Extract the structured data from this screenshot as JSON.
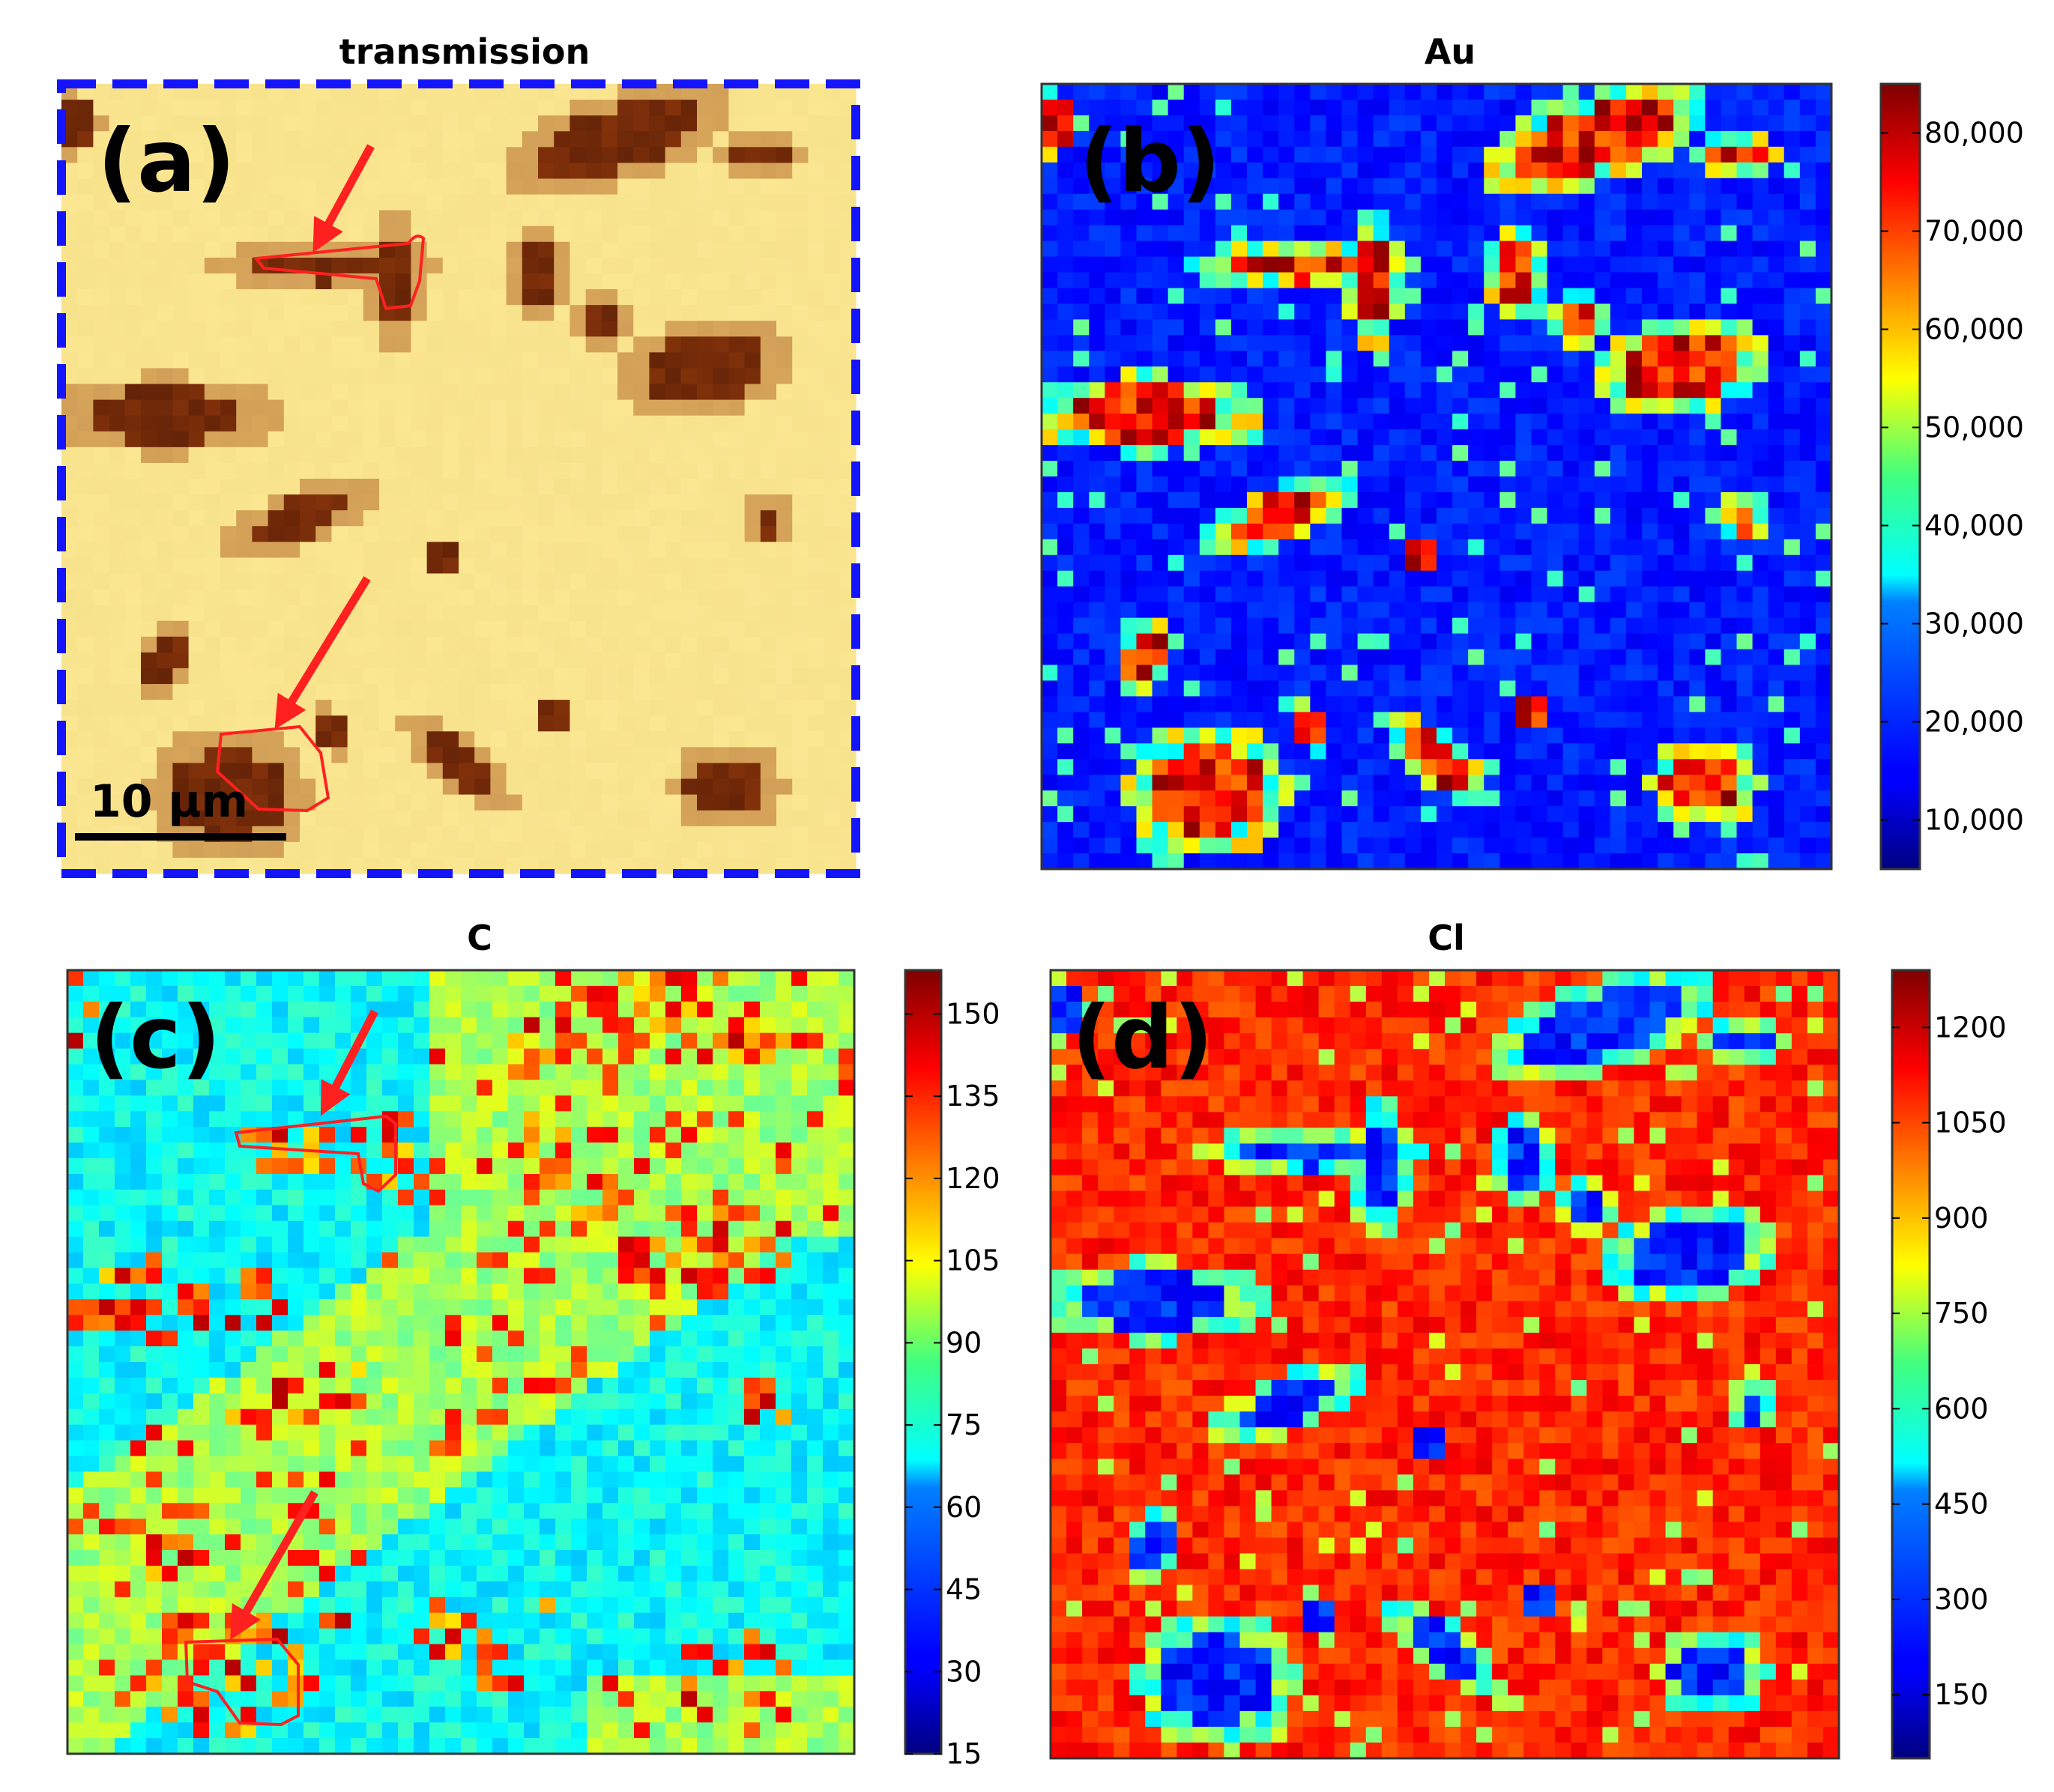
{
  "chart_data": [
    {
      "id": "a",
      "type": "heatmap",
      "title": "transmission",
      "panel_label": "(a)",
      "scale_bar_label": "10 µm",
      "colormap": "hot-inverse (light yellow background, dark brown particles)",
      "colors": {
        "background": "#fbe58f",
        "particle": "#3a0d00",
        "frame": "#1414ff",
        "annotation": "#ff2020"
      },
      "annotations": [
        "arrow",
        "outlined particle",
        "arrow",
        "outlined particle"
      ]
    },
    {
      "id": "b",
      "type": "heatmap",
      "title": "Au",
      "panel_label": "(b)",
      "colormap": "jet",
      "colorbar": {
        "min": 5000,
        "max": 85000,
        "ticks": [
          "10,000",
          "20,000",
          "30,000",
          "40,000",
          "50,000",
          "60,000",
          "70,000",
          "80,000"
        ],
        "tick_values": [
          10000,
          20000,
          30000,
          40000,
          50000,
          60000,
          70000,
          80000
        ]
      }
    },
    {
      "id": "c",
      "type": "heatmap",
      "title": "C",
      "panel_label": "(c)",
      "colormap": "jet",
      "colorbar": {
        "min": 15,
        "max": 158,
        "ticks": [
          "15",
          "30",
          "45",
          "60",
          "75",
          "90",
          "105",
          "120",
          "135",
          "150"
        ],
        "tick_values": [
          15,
          30,
          45,
          60,
          75,
          90,
          105,
          120,
          135,
          150
        ]
      }
    },
    {
      "id": "d",
      "type": "heatmap",
      "title": "Cl",
      "panel_label": "(d)",
      "colormap": "jet",
      "colorbar": {
        "min": 50,
        "max": 1290,
        "ticks": [
          "150",
          "300",
          "450",
          "600",
          "750",
          "900",
          "1050",
          "1200"
        ],
        "tick_values": [
          150,
          300,
          450,
          600,
          750,
          900,
          1050,
          1200
        ]
      }
    }
  ]
}
